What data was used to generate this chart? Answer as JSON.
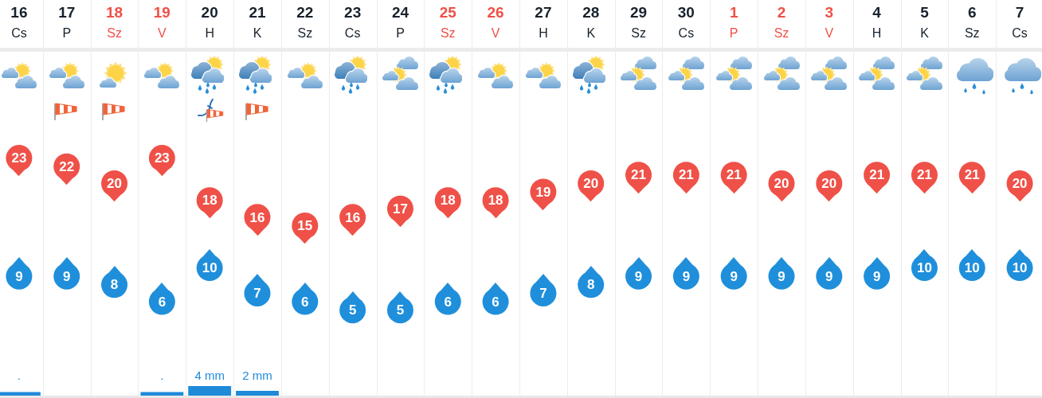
{
  "chart_data": [
    {
      "type": "scatter",
      "categories": [
        "16\nCs",
        "17\nP",
        "18\nSz",
        "19\nV",
        "20\nH",
        "21\nK",
        "22\nSz",
        "23\nCs",
        "24\nP",
        "25\nSz",
        "26\nV",
        "27\nH",
        "28\nK",
        "29\nSz",
        "30\nCs",
        "1\nP",
        "2\nSz",
        "3\nV",
        "4\nH",
        "5\nK",
        "6\nSz",
        "7\nCs"
      ],
      "series": [
        {
          "color": "#ef5148",
          "values": [
            23,
            22,
            20,
            23,
            18,
            16,
            15,
            16,
            17,
            18,
            18,
            19,
            20,
            21,
            21,
            21,
            20,
            20,
            21,
            21,
            21,
            20
          ]
        },
        {
          "color": "#1f8fdb",
          "values": [
            9,
            9,
            8,
            6,
            10,
            7,
            6,
            5,
            5,
            6,
            6,
            7,
            8,
            9,
            9,
            9,
            9,
            9,
            9,
            10,
            10,
            10
          ]
        }
      ],
      "data_labels": true,
      "marker": "circle",
      "grid": "x",
      "tick_labels": "x"
    },
    {
      "type": "bar",
      "categories": [
        null,
        null,
        null,
        null,
        null,
        null,
        null,
        null,
        null,
        null,
        null,
        null,
        null,
        null,
        null,
        null,
        null,
        null,
        null,
        null,
        null,
        null
      ],
      "color": "#1e8ad8",
      "values": [
        1.5,
        null,
        null,
        1.5,
        4,
        2,
        null,
        null,
        null,
        null,
        null,
        null,
        null,
        null,
        null,
        null,
        null,
        null,
        null,
        null,
        null,
        null
      ],
      "value_labels": [
        ".",
        null,
        null,
        ".",
        "4 mm",
        "2 mm",
        null,
        null,
        null,
        null,
        null,
        null,
        null,
        null,
        null,
        null,
        null,
        null,
        null,
        null,
        null,
        null
      ],
      "grid": "x",
      "tick_labels": false
    }
  ]
}
